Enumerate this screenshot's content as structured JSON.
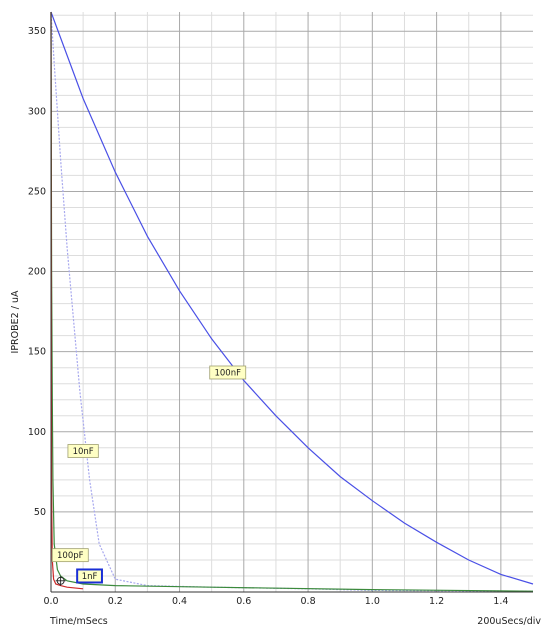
{
  "chart_data": {
    "type": "line",
    "xlabel": "Time/mSecs",
    "ylabel": "IPROBE2 / uA",
    "timebase": "200uSecs/div",
    "xlim": [
      0,
      1.5
    ],
    "ylim": [
      0,
      362
    ],
    "x_ticks": [
      "0.0",
      "0.2",
      "0.4",
      "0.6",
      "0.8",
      "1.0",
      "1.2",
      "1.4"
    ],
    "x_tick_values": [
      0,
      0.2,
      0.4,
      0.6,
      0.8,
      1.0,
      1.2,
      1.4
    ],
    "y_ticks": [
      "50",
      "100",
      "150",
      "200",
      "250",
      "300",
      "350"
    ],
    "y_tick_values": [
      50,
      100,
      150,
      200,
      250,
      300,
      350
    ],
    "grid": true,
    "colors": {
      "grid_major": "#a9a9a9",
      "grid_minor": "#dddddd",
      "label_bg": "#ffffc4",
      "label_border": "#a0a070",
      "selected_border": "#1a2fd6"
    },
    "series": [
      {
        "name": "100nF",
        "color": "#4a50e6",
        "style": "solid",
        "label_at": [
          0.55,
          137
        ],
        "x": [
          0,
          0.1,
          0.2,
          0.3,
          0.4,
          0.5,
          0.6,
          0.7,
          0.8,
          0.9,
          1.0,
          1.1,
          1.2,
          1.3,
          1.4,
          1.5
        ],
        "y": [
          362,
          308,
          262,
          222,
          188,
          158,
          132,
          110,
          90,
          72,
          57,
          43,
          31,
          20,
          11,
          5
        ]
      },
      {
        "name": "10nF",
        "color": "#a7a8ee",
        "style": "dotted",
        "label_at": [
          0.1,
          88
        ],
        "x": [
          0,
          0.01,
          0.02,
          0.03,
          0.05,
          0.07,
          0.09,
          0.12,
          0.15,
          0.2,
          0.3,
          0.5,
          0.8,
          1.0,
          1.5
        ],
        "y": [
          362,
          330,
          300,
          270,
          215,
          170,
          125,
          70,
          30,
          8,
          4,
          3,
          2,
          1,
          0.5
        ]
      },
      {
        "name": "100pF",
        "color": "#3b8a3b",
        "style": "solid",
        "label_at": [
          0.06,
          23
        ],
        "x": [
          0,
          0.002,
          0.004,
          0.006,
          0.01,
          0.02,
          0.03,
          0.05,
          0.1,
          0.2,
          0.5,
          1.0,
          1.5
        ],
        "y": [
          362,
          200,
          120,
          70,
          30,
          14,
          10,
          7,
          5,
          4,
          3,
          1.5,
          0.5
        ]
      },
      {
        "name": "1nF",
        "color": "#cc2a2a",
        "style": "solid",
        "label_at": [
          0.12,
          10
        ],
        "selected": true,
        "x": [
          0,
          0.001,
          0.002,
          0.004,
          0.008,
          0.015,
          0.03,
          0.05,
          0.1
        ],
        "y": [
          362,
          150,
          60,
          20,
          8,
          5,
          4,
          3,
          2
        ]
      }
    ]
  }
}
